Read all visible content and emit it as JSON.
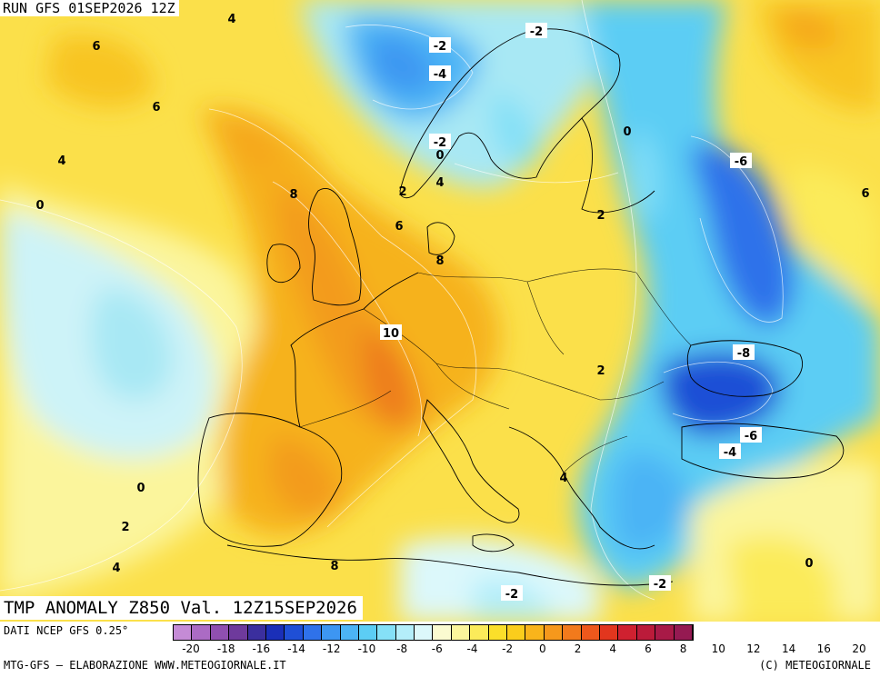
{
  "header": {
    "run": "RUN GFS 01SEP2026 12Z"
  },
  "title": "TMP ANOMALY Z850 Val. 12Z15SEP2026",
  "source": "DATI NCEP GFS 0.25°",
  "credits": {
    "left": "MTG-GFS – ELABORAZIONE WWW.METEOGIORNALE.IT",
    "right": "(C) METEOGIORNALE"
  },
  "legend": {
    "colors": [
      "#c58bd6",
      "#ab6bc4",
      "#8f4fb0",
      "#6e3a9c",
      "#3b2f9e",
      "#1a2fb8",
      "#1f4fd6",
      "#2f72ea",
      "#3d96f2",
      "#4cb4f5",
      "#5ccdf4",
      "#85e0f7",
      "#b4eefa",
      "#dcf8fb",
      "#fbfbd0",
      "#fbf59c",
      "#fbeb5a",
      "#fbdf2a",
      "#fbcd1c",
      "#f9b41b",
      "#f6981c",
      "#f27a1c",
      "#ee581c",
      "#e2361e",
      "#cf2130",
      "#bb1b3a",
      "#a81a47",
      "#951a52"
    ],
    "ticks": [
      "-20",
      "-18",
      "-16",
      "-14",
      "-12",
      "-10",
      "-8",
      "-6",
      "-4",
      "-2",
      "0",
      "2",
      "4",
      "6",
      "8",
      "10",
      "12",
      "14",
      "16",
      "20"
    ]
  },
  "contour_labels": [
    "4",
    "-2",
    "-2",
    "6",
    "-4",
    "6",
    "-2",
    "0",
    "0",
    "-6",
    "4",
    "4",
    "8",
    "2",
    "0",
    "6",
    "6",
    "2",
    "8",
    "10",
    "2",
    "-8",
    "-6",
    "-4",
    "4",
    "0",
    "2",
    "0",
    "4",
    "8",
    "-2",
    "-2"
  ]
}
